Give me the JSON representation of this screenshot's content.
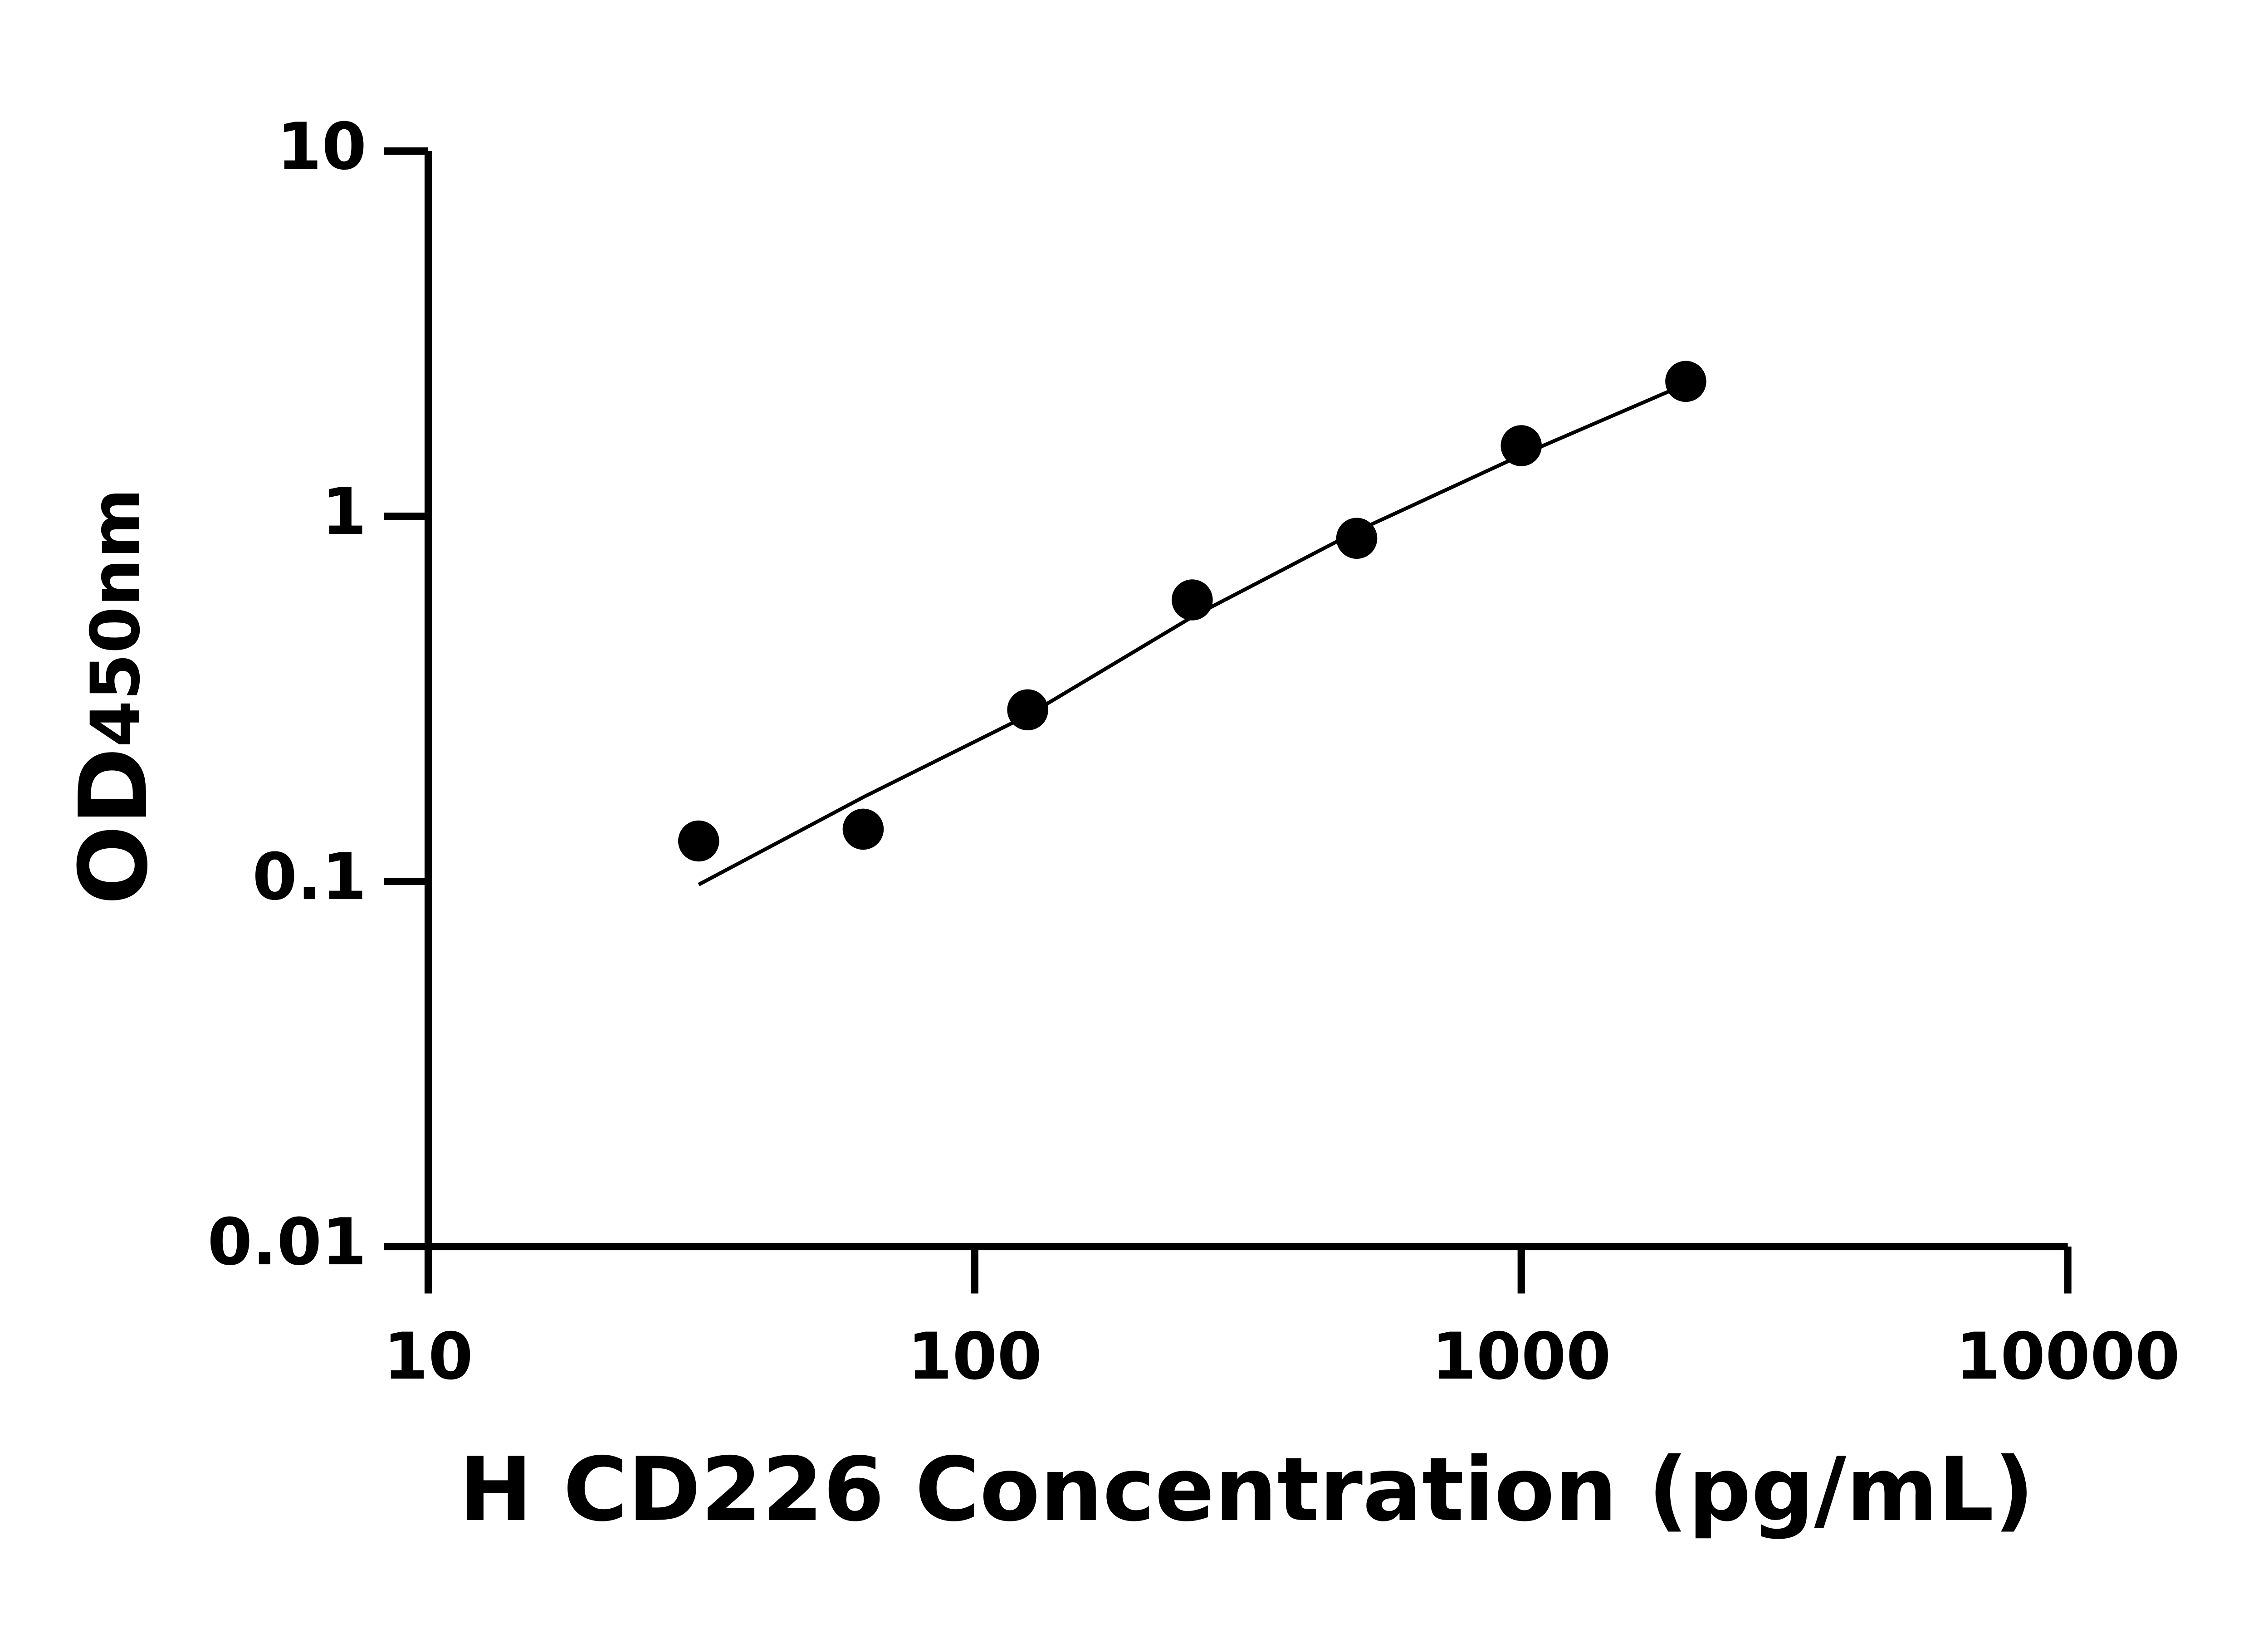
{
  "chart_data": {
    "type": "scatter",
    "x_label": "H CD226 Concentration (pg/mL)",
    "y_label": "OD",
    "y_label_sub": "450nm",
    "x": [
      31.25,
      62.5,
      125,
      250,
      500,
      1000,
      2000
    ],
    "series": [
      {
        "style": "points",
        "color": "#000000",
        "values": [
          0.129,
          0.139,
          0.295,
          0.59,
          0.87,
          1.56,
          2.34
        ]
      },
      {
        "style": "line",
        "color": "#000000",
        "values": [
          0.098,
          0.17,
          0.285,
          0.53,
          0.91,
          1.47,
          2.3
        ]
      }
    ],
    "xscale": "log",
    "yscale": "log",
    "xlim": [
      10,
      10000
    ],
    "xticks": [
      10,
      100,
      1000,
      10000
    ],
    "ylim": [
      0.01,
      10
    ],
    "yticks": [
      0.01,
      0.1,
      1,
      10
    ]
  }
}
